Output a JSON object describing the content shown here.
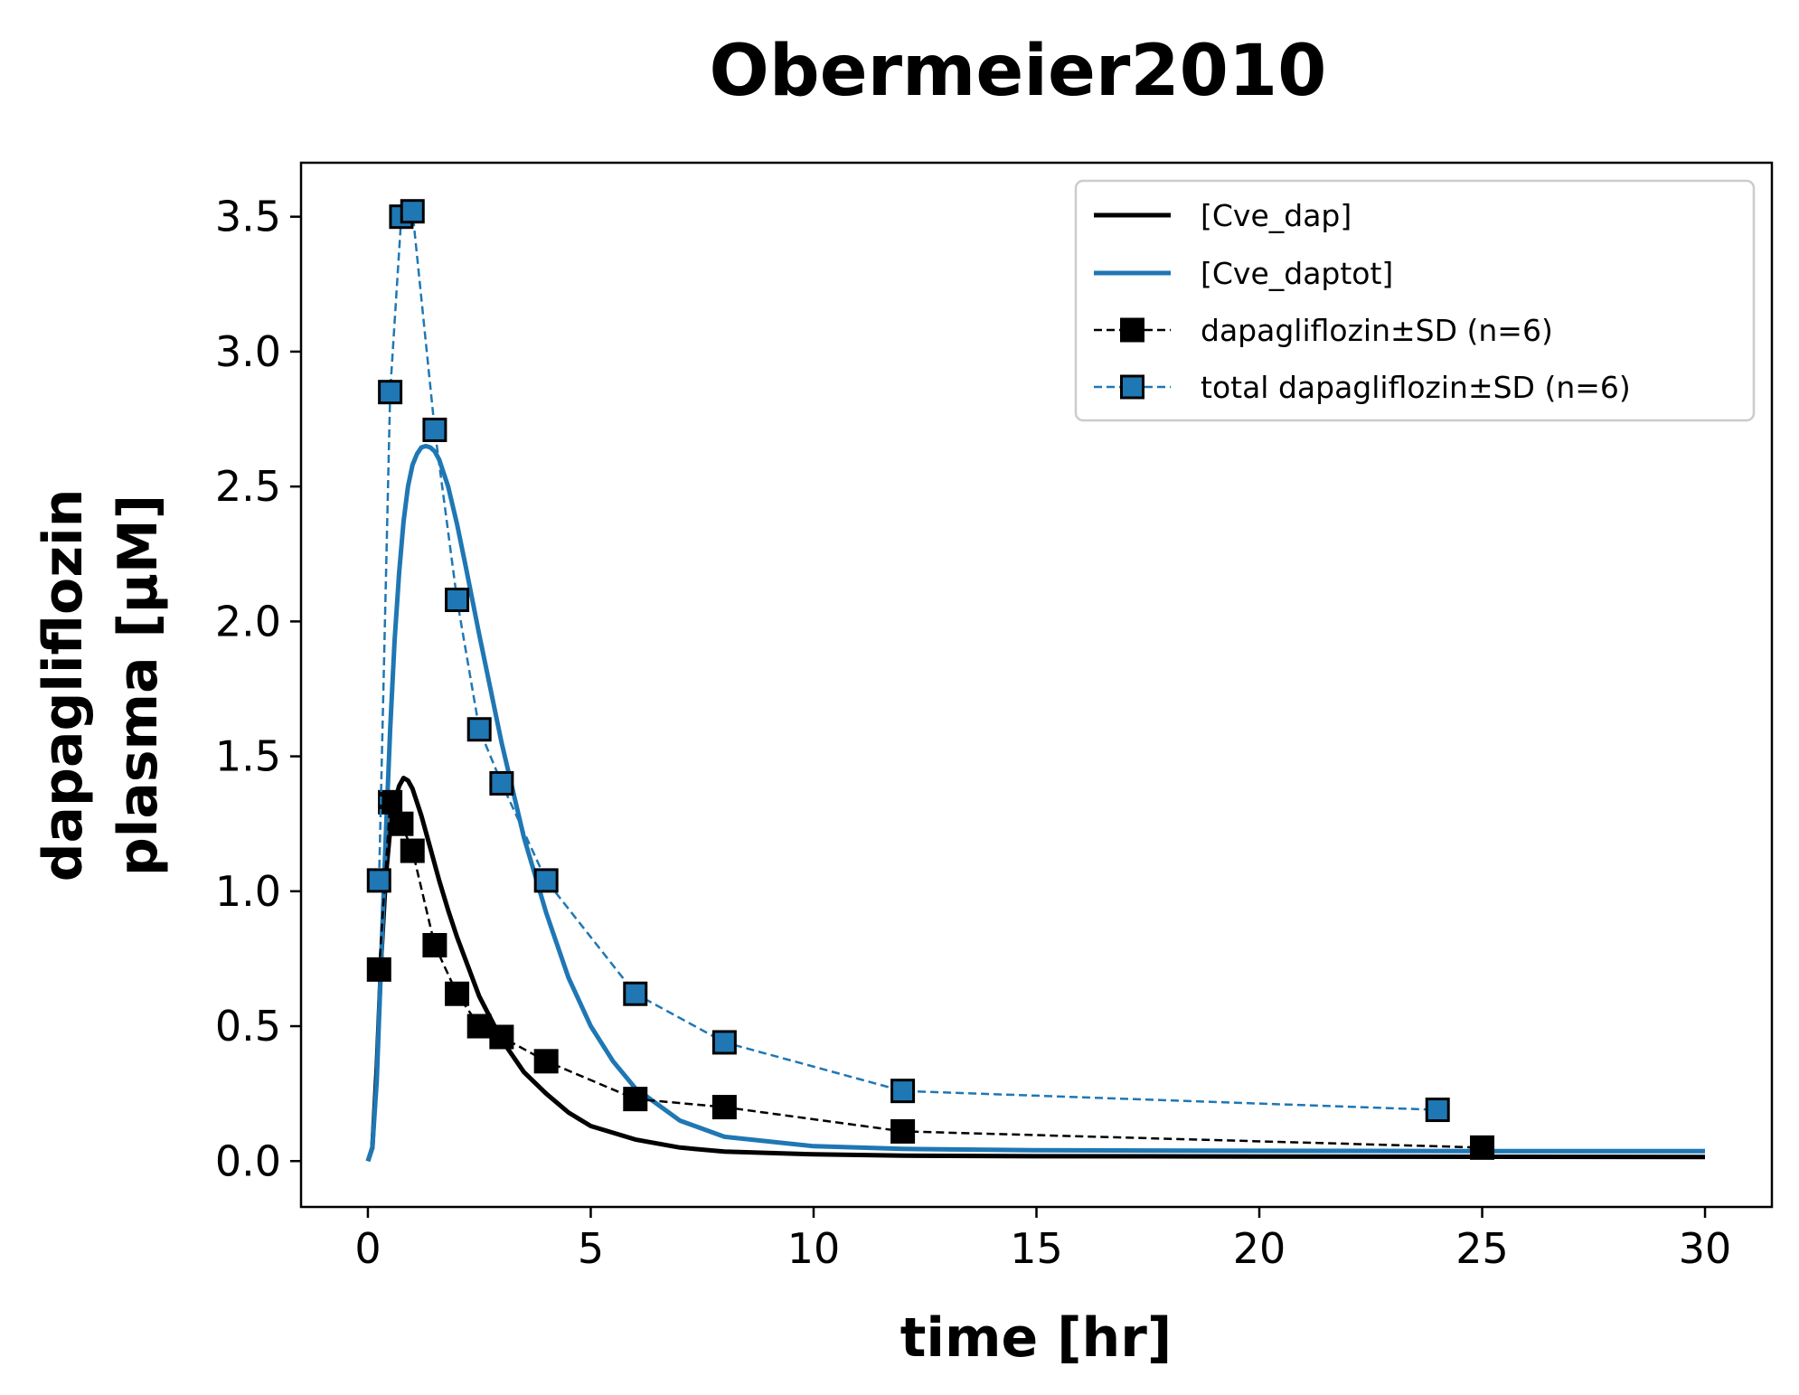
{
  "chart_data": {
    "type": "line",
    "title": "Obermeier2010",
    "xlabel": "time [hr]",
    "ylabel": [
      "dapagliflozin",
      "plasma [µM]"
    ],
    "xlim": [
      -1.5,
      31.5
    ],
    "ylim": [
      -0.17,
      3.7
    ],
    "xticks": [
      0,
      5,
      10,
      15,
      20,
      25,
      30
    ],
    "xtick_labels": [
      "0",
      "5",
      "10",
      "15",
      "20",
      "25",
      "30"
    ],
    "yticks": [
      0.0,
      0.5,
      1.0,
      1.5,
      2.0,
      2.5,
      3.0,
      3.5
    ],
    "ytick_labels": [
      "0.0",
      "0.5",
      "1.0",
      "1.5",
      "2.0",
      "2.5",
      "3.0",
      "3.5"
    ],
    "grid": false,
    "legend_position": "top-right",
    "series": [
      {
        "name": "[Cve_dap]",
        "kind": "line",
        "color": "#000000",
        "x": [
          0,
          0.1,
          0.2,
          0.3,
          0.4,
          0.5,
          0.6,
          0.7,
          0.8,
          0.9,
          1.0,
          1.2,
          1.4,
          1.6,
          1.8,
          2.0,
          2.5,
          3.0,
          3.5,
          4.0,
          4.5,
          5.0,
          6.0,
          7.0,
          8.0,
          10.0,
          12.0,
          15.0,
          20.0,
          25.0,
          30.0
        ],
        "y": [
          0.0,
          0.05,
          0.35,
          0.75,
          1.05,
          1.23,
          1.33,
          1.39,
          1.42,
          1.41,
          1.38,
          1.28,
          1.16,
          1.04,
          0.93,
          0.83,
          0.61,
          0.45,
          0.33,
          0.25,
          0.18,
          0.13,
          0.08,
          0.05,
          0.035,
          0.025,
          0.02,
          0.018,
          0.017,
          0.016,
          0.015
        ]
      },
      {
        "name": "[Cve_daptot]",
        "kind": "line",
        "color": "#1f77b4",
        "x": [
          0,
          0.1,
          0.2,
          0.3,
          0.4,
          0.5,
          0.6,
          0.7,
          0.8,
          0.9,
          1.0,
          1.1,
          1.2,
          1.3,
          1.4,
          1.5,
          1.6,
          1.8,
          2.0,
          2.2,
          2.5,
          3.0,
          3.5,
          4.0,
          4.5,
          5.0,
          5.5,
          6.0,
          7.0,
          8.0,
          10.0,
          12.0,
          15.0,
          20.0,
          25.0,
          30.0
        ],
        "y": [
          0.0,
          0.05,
          0.3,
          0.75,
          1.2,
          1.6,
          1.93,
          2.18,
          2.37,
          2.5,
          2.58,
          2.62,
          2.645,
          2.65,
          2.645,
          2.63,
          2.6,
          2.5,
          2.36,
          2.2,
          1.95,
          1.55,
          1.2,
          0.92,
          0.68,
          0.5,
          0.37,
          0.27,
          0.15,
          0.09,
          0.055,
          0.045,
          0.04,
          0.038,
          0.037,
          0.037
        ]
      },
      {
        "name": "dapagliflozin±SD (n=6)",
        "kind": "markers",
        "color": "#000000",
        "marker": "square",
        "x": [
          0.25,
          0.5,
          0.75,
          1.0,
          1.5,
          2.0,
          2.5,
          3.0,
          4.0,
          6.0,
          8.0,
          12.0,
          25.0
        ],
        "y": [
          0.71,
          1.33,
          1.25,
          1.15,
          0.8,
          0.62,
          0.5,
          0.46,
          0.37,
          0.23,
          0.2,
          0.11,
          0.05
        ]
      },
      {
        "name": "total dapagliflozin±SD (n=6)",
        "kind": "markers",
        "color": "#1f77b4",
        "marker": "square",
        "x": [
          0.25,
          0.5,
          0.75,
          1.0,
          1.5,
          2.0,
          2.5,
          3.0,
          4.0,
          6.0,
          8.0,
          12.0,
          24.0
        ],
        "y": [
          1.04,
          2.85,
          3.5,
          3.52,
          2.71,
          2.08,
          1.6,
          1.4,
          1.04,
          0.62,
          0.44,
          0.26,
          0.19
        ]
      }
    ]
  }
}
